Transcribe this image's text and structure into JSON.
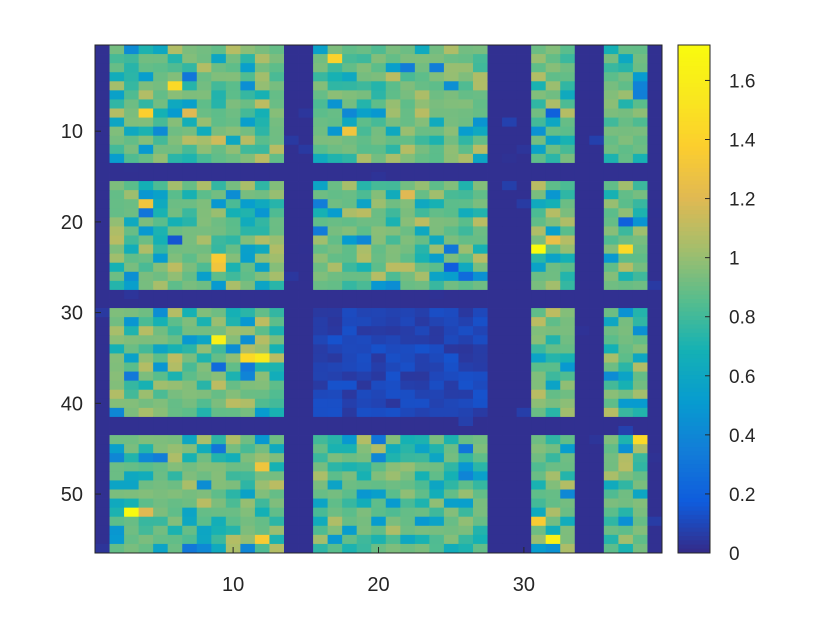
{
  "chart_data": {
    "type": "heatmap",
    "title": "",
    "xlabel": "",
    "ylabel": "",
    "n_cols": 39,
    "n_rows": 56,
    "xlim": [
      0.5,
      39.5
    ],
    "ylim": [
      0.5,
      56.5
    ],
    "x_ticks": [
      10,
      20,
      30
    ],
    "y_ticks": [
      10,
      20,
      30,
      40,
      50
    ],
    "x_tick_labels": [
      "10",
      "20",
      "30"
    ],
    "y_tick_labels": [
      "10",
      "20",
      "30",
      "40",
      "50"
    ],
    "colormap": "parula",
    "colorbar": {
      "range": [
        0,
        1.72
      ],
      "ticks": [
        0,
        0.2,
        0.4,
        0.6,
        0.8,
        1,
        1.2,
        1.4,
        1.6
      ],
      "tick_labels": [
        "0",
        "0.2",
        "0.4",
        "0.6",
        "0.8",
        "1",
        "1.2",
        "1.4",
        "1.6"
      ]
    },
    "background_value": 0.02,
    "column_blocks": [
      [
        2,
        13
      ],
      [
        16,
        27
      ],
      [
        31,
        33
      ],
      [
        36,
        38
      ]
    ],
    "row_blocks": [
      [
        1,
        13
      ],
      [
        16,
        27
      ],
      [
        30,
        41
      ],
      [
        44,
        56
      ]
    ],
    "block_mean": [
      [
        0.9,
        0.9,
        0.9,
        0.9
      ],
      [
        0.9,
        0.9,
        0.9,
        0.9
      ],
      [
        0.9,
        0.1,
        0.9,
        0.9
      ],
      [
        0.9,
        0.9,
        0.9,
        0.9
      ]
    ],
    "notable_cells": [
      {
        "x": 6,
        "y": 5,
        "value": 1.45
      },
      {
        "x": 17,
        "y": 2,
        "value": 1.4
      },
      {
        "x": 4,
        "y": 8,
        "value": 1.38
      },
      {
        "x": 7,
        "y": 8,
        "value": 1.2
      },
      {
        "x": 9,
        "y": 11,
        "value": 1.15
      },
      {
        "x": 18,
        "y": 10,
        "value": 1.3
      },
      {
        "x": 4,
        "y": 18,
        "value": 1.3
      },
      {
        "x": 9,
        "y": 24,
        "value": 1.35
      },
      {
        "x": 9,
        "y": 25,
        "value": 1.3
      },
      {
        "x": 31,
        "y": 23,
        "value": 1.72
      },
      {
        "x": 32,
        "y": 22,
        "value": 1.25
      },
      {
        "x": 37,
        "y": 23,
        "value": 1.45
      },
      {
        "x": 22,
        "y": 17,
        "value": 1.2
      },
      {
        "x": 9,
        "y": 33,
        "value": 1.62
      },
      {
        "x": 11,
        "y": 35,
        "value": 1.45
      },
      {
        "x": 12,
        "y": 35,
        "value": 1.55
      },
      {
        "x": 3,
        "y": 52,
        "value": 1.7
      },
      {
        "x": 4,
        "y": 52,
        "value": 1.2
      },
      {
        "x": 12,
        "y": 47,
        "value": 1.3
      },
      {
        "x": 12,
        "y": 55,
        "value": 1.35
      },
      {
        "x": 31,
        "y": 53,
        "value": 1.35
      },
      {
        "x": 32,
        "y": 55,
        "value": 1.62
      },
      {
        "x": 38,
        "y": 44,
        "value": 1.45
      },
      {
        "x": 4,
        "y": 19,
        "value": 0.3
      },
      {
        "x": 6,
        "y": 22,
        "value": 0.15
      },
      {
        "x": 25,
        "y": 25,
        "value": 0.18
      },
      {
        "x": 26,
        "y": 26,
        "value": 0.25
      },
      {
        "x": 9,
        "y": 36,
        "value": 0.25
      },
      {
        "x": 32,
        "y": 8,
        "value": 0.2
      },
      {
        "x": 37,
        "y": 20,
        "value": 0.2
      }
    ]
  }
}
